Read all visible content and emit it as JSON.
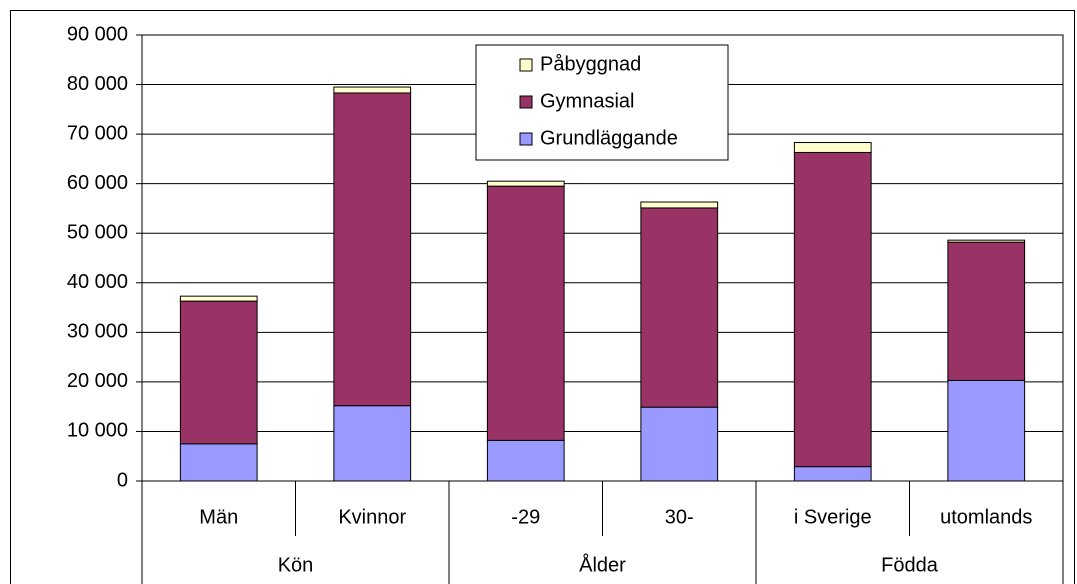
{
  "chart_data": {
    "type": "stacked_bar",
    "groups": [
      {
        "name": "Kön",
        "categories": [
          "Män",
          "Kvinnor"
        ]
      },
      {
        "name": "Ålder",
        "categories": [
          "-29",
          "30-"
        ]
      },
      {
        "name": "Födda",
        "categories": [
          "i Sverige",
          "utomlands"
        ]
      }
    ],
    "series": [
      {
        "name": "Grundläggande",
        "color": "#9999ff",
        "values": [
          7500,
          15200,
          8200,
          14900,
          2900,
          20300
        ]
      },
      {
        "name": "Gymnasial",
        "color": "#993366",
        "values": [
          28800,
          63100,
          51300,
          40200,
          63400,
          27900
        ]
      },
      {
        "name": "Påbyggnad",
        "color": "#ffffcc",
        "values": [
          1000,
          1200,
          1000,
          1200,
          2000,
          400
        ]
      }
    ],
    "ylim": [
      0,
      90000
    ],
    "yticks": [
      0,
      {
        "value": 10000,
        "label": "10 000"
      },
      {
        "value": 20000,
        "label": "20 000"
      },
      {
        "value": 30000,
        "label": "30 000"
      },
      {
        "value": 40000,
        "label": "40 000"
      },
      {
        "value": 50000,
        "label": "50 000"
      },
      {
        "value": 60000,
        "label": "60 000"
      },
      {
        "value": 70000,
        "label": "70 000"
      },
      {
        "value": 80000,
        "label": "80 000"
      },
      {
        "value": 90000,
        "label": "90 000"
      }
    ],
    "grid": true,
    "legend": "top"
  }
}
